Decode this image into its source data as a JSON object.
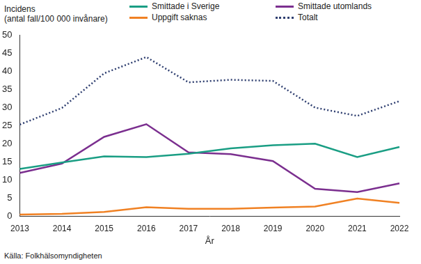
{
  "chart_data": {
    "type": "line",
    "y_label": [
      "Incidens",
      "(antal fall/100 000 invånare)"
    ],
    "x_label": "År",
    "source": "Källa: Folkhälsomyndigheten",
    "categories": [
      "2013",
      "2014",
      "2015",
      "2016",
      "2017",
      "2018",
      "2019",
      "2020",
      "2021",
      "2022"
    ],
    "series": [
      {
        "name": "Smittade i Sverige",
        "color": "#1a9e84",
        "line_style": "solid",
        "marker": "none",
        "values": [
          13.0,
          14.8,
          16.5,
          16.3,
          17.2,
          18.7,
          19.6,
          20.0,
          16.3,
          19.1
        ]
      },
      {
        "name": "Smittade utomlands",
        "color": "#7b2f8f",
        "line_style": "solid",
        "marker": "none",
        "values": [
          11.9,
          14.5,
          21.9,
          25.4,
          17.6,
          17.1,
          15.2,
          7.5,
          6.6,
          9.0
        ]
      },
      {
        "name": "Uppgift saknas",
        "color": "#f08123",
        "line_style": "solid",
        "marker": "none",
        "values": [
          0.4,
          0.6,
          1.1,
          2.4,
          2.0,
          2.0,
          2.3,
          2.6,
          4.8,
          3.6
        ]
      },
      {
        "name": "Totalt",
        "color": "#2f3f70",
        "line_style": "dotted",
        "marker": "none",
        "values": [
          25.3,
          29.9,
          39.5,
          44.0,
          37.0,
          37.7,
          37.4,
          30.0,
          27.7,
          31.8
        ]
      }
    ],
    "ylim": [
      0,
      50
    ],
    "yticks": [
      0,
      5,
      10,
      15,
      20,
      25,
      30,
      35,
      40,
      45,
      50
    ],
    "grid": false,
    "legend": "top"
  }
}
